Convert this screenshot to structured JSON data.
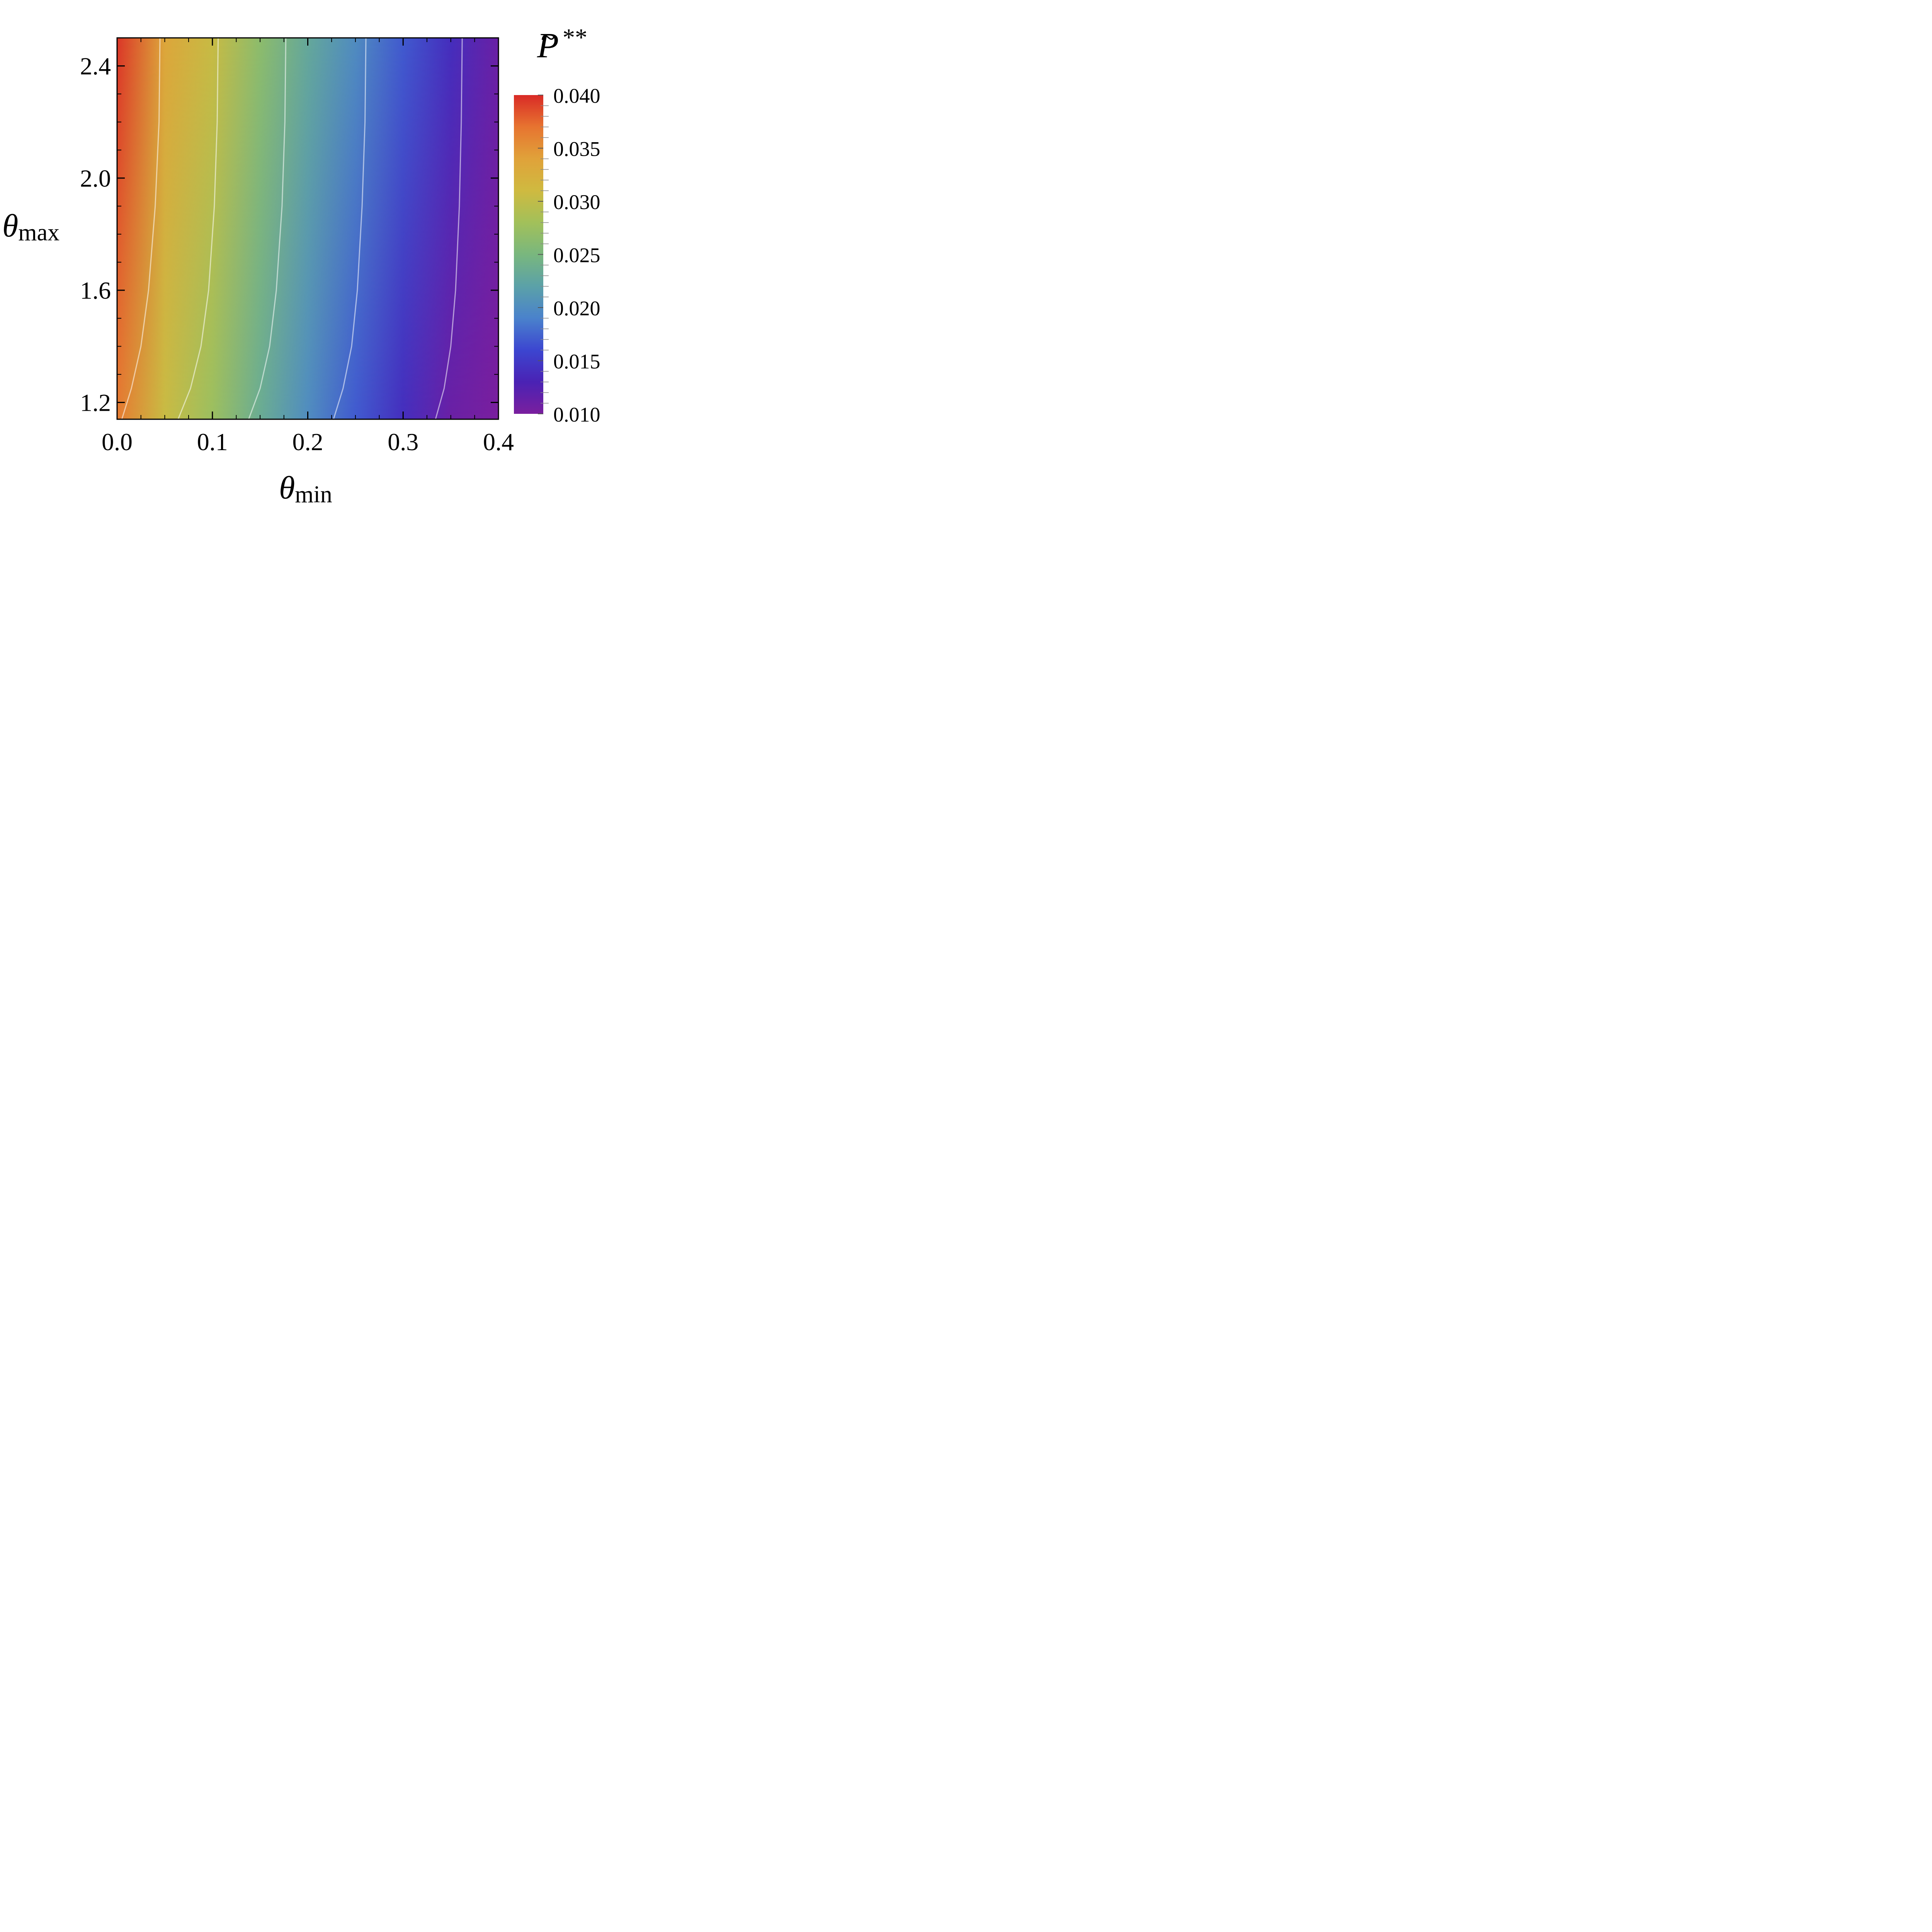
{
  "chart_data": {
    "type": "heatmap",
    "title": "",
    "xlabel": {
      "symbol": "θ",
      "subscript": "min"
    },
    "ylabel": {
      "symbol": "θ",
      "subscript": "max"
    },
    "xlim": [
      0.0,
      0.4
    ],
    "ylim": [
      1.14,
      2.5
    ],
    "x_ticks": [
      0.0,
      0.1,
      0.2,
      0.3,
      0.4
    ],
    "x_tick_labels": [
      "0.0",
      "0.1",
      "0.2",
      "0.3",
      "0.4"
    ],
    "y_ticks": [
      1.2,
      1.6,
      2.0,
      2.4
    ],
    "y_tick_labels": [
      "1.2",
      "1.6",
      "2.0",
      "2.4"
    ],
    "colorbar": {
      "label": {
        "symbol": "P",
        "decoration": "~",
        "superscript": "**"
      },
      "range": [
        0.01,
        0.04
      ],
      "ticks": [
        0.01,
        0.015,
        0.02,
        0.025,
        0.03,
        0.035,
        0.04
      ],
      "tick_labels": [
        "0.010",
        "0.015",
        "0.020",
        "0.025",
        "0.030",
        "0.035",
        "0.040"
      ],
      "colormap": [
        {
          "value": 0.01,
          "color": "#7a1f9e"
        },
        {
          "value": 0.013,
          "color": "#4a22b4"
        },
        {
          "value": 0.016,
          "color": "#3c46d0"
        },
        {
          "value": 0.019,
          "color": "#4a82cc"
        },
        {
          "value": 0.022,
          "color": "#5ba1a8"
        },
        {
          "value": 0.025,
          "color": "#79b77e"
        },
        {
          "value": 0.028,
          "color": "#a2c05a"
        },
        {
          "value": 0.031,
          "color": "#cfba40"
        },
        {
          "value": 0.034,
          "color": "#e0a23a"
        },
        {
          "value": 0.037,
          "color": "#e77430"
        },
        {
          "value": 0.04,
          "color": "#d92a26"
        }
      ]
    },
    "field_at_top": [
      {
        "x": 0.0,
        "value": 0.0395
      },
      {
        "x": 0.05,
        "value": 0.0335
      },
      {
        "x": 0.1,
        "value": 0.0305
      },
      {
        "x": 0.15,
        "value": 0.0265
      },
      {
        "x": 0.2,
        "value": 0.023
      },
      {
        "x": 0.25,
        "value": 0.02
      },
      {
        "x": 0.3,
        "value": 0.017
      },
      {
        "x": 0.35,
        "value": 0.014
      },
      {
        "x": 0.4,
        "value": 0.011
      }
    ],
    "contours": [
      {
        "name": "contour-1",
        "points": [
          [
            0.005,
            1.14
          ],
          [
            0.015,
            1.25
          ],
          [
            0.025,
            1.4
          ],
          [
            0.033,
            1.6
          ],
          [
            0.04,
            1.9
          ],
          [
            0.044,
            2.2
          ],
          [
            0.045,
            2.5
          ]
        ]
      },
      {
        "name": "contour-2",
        "points": [
          [
            0.064,
            1.14
          ],
          [
            0.077,
            1.25
          ],
          [
            0.088,
            1.4
          ],
          [
            0.096,
            1.6
          ],
          [
            0.102,
            1.9
          ],
          [
            0.105,
            2.2
          ],
          [
            0.106,
            2.5
          ]
        ]
      },
      {
        "name": "contour-3",
        "points": [
          [
            0.138,
            1.14
          ],
          [
            0.15,
            1.25
          ],
          [
            0.16,
            1.4
          ],
          [
            0.167,
            1.6
          ],
          [
            0.173,
            1.9
          ],
          [
            0.176,
            2.2
          ],
          [
            0.177,
            2.5
          ]
        ]
      },
      {
        "name": "contour-4",
        "points": [
          [
            0.227,
            1.14
          ],
          [
            0.237,
            1.25
          ],
          [
            0.246,
            1.4
          ],
          [
            0.252,
            1.6
          ],
          [
            0.257,
            1.9
          ],
          [
            0.26,
            2.2
          ],
          [
            0.261,
            2.5
          ]
        ]
      },
      {
        "name": "contour-5",
        "points": [
          [
            0.334,
            1.14
          ],
          [
            0.343,
            1.25
          ],
          [
            0.35,
            1.4
          ],
          [
            0.355,
            1.6
          ],
          [
            0.359,
            1.9
          ],
          [
            0.361,
            2.2
          ],
          [
            0.362,
            2.5
          ]
        ]
      }
    ],
    "contour_color": "#ffffff",
    "grid": false,
    "legend": "none"
  }
}
